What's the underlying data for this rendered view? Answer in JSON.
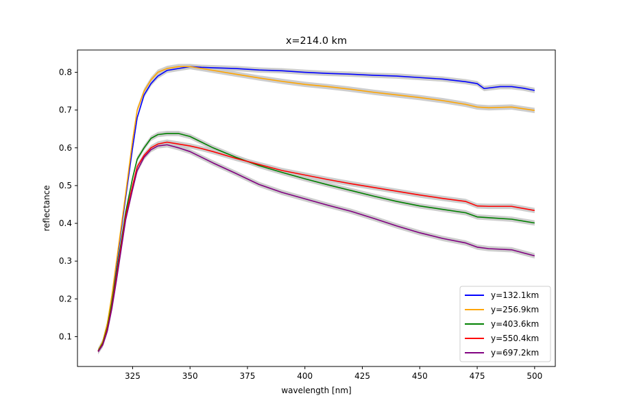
{
  "chart_data": {
    "type": "line",
    "title": "x=214.0 km",
    "xlabel": "wavelength [nm]",
    "ylabel": "reflectance",
    "xlim": [
      301,
      509
    ],
    "ylim": [
      0.021,
      0.859
    ],
    "xticks": [
      325,
      350,
      375,
      400,
      425,
      450,
      475,
      500
    ],
    "yticks": [
      0.1,
      0.2,
      0.3,
      0.4,
      0.5,
      0.6,
      0.7,
      0.8
    ],
    "grid": false,
    "legend_position": "lower-right",
    "band_color": "#c8c8c8",
    "series": [
      {
        "name": "y=132.1km",
        "color": "#0000ff",
        "points": [
          [
            310,
            0.063
          ],
          [
            312,
            0.085
          ],
          [
            314,
            0.13
          ],
          [
            316,
            0.2
          ],
          [
            318,
            0.29
          ],
          [
            320,
            0.38
          ],
          [
            322,
            0.47
          ],
          [
            325,
            0.6
          ],
          [
            327,
            0.68
          ],
          [
            330,
            0.74
          ],
          [
            333,
            0.77
          ],
          [
            336,
            0.79
          ],
          [
            340,
            0.805
          ],
          [
            345,
            0.81
          ],
          [
            350,
            0.815
          ],
          [
            355,
            0.813
          ],
          [
            360,
            0.812
          ],
          [
            370,
            0.81
          ],
          [
            380,
            0.806
          ],
          [
            390,
            0.804
          ],
          [
            400,
            0.8
          ],
          [
            410,
            0.797
          ],
          [
            420,
            0.795
          ],
          [
            430,
            0.792
          ],
          [
            440,
            0.79
          ],
          [
            450,
            0.786
          ],
          [
            460,
            0.782
          ],
          [
            470,
            0.775
          ],
          [
            475,
            0.77
          ],
          [
            478,
            0.757
          ],
          [
            485,
            0.762
          ],
          [
            490,
            0.762
          ],
          [
            495,
            0.758
          ],
          [
            500,
            0.752
          ]
        ]
      },
      {
        "name": "y=256.9km",
        "color": "#ffa500",
        "points": [
          [
            310,
            0.063
          ],
          [
            312,
            0.087
          ],
          [
            314,
            0.135
          ],
          [
            316,
            0.21
          ],
          [
            318,
            0.3
          ],
          [
            320,
            0.39
          ],
          [
            322,
            0.48
          ],
          [
            325,
            0.62
          ],
          [
            327,
            0.7
          ],
          [
            330,
            0.75
          ],
          [
            333,
            0.78
          ],
          [
            336,
            0.8
          ],
          [
            340,
            0.81
          ],
          [
            345,
            0.815
          ],
          [
            350,
            0.815
          ],
          [
            355,
            0.81
          ],
          [
            360,
            0.805
          ],
          [
            370,
            0.795
          ],
          [
            380,
            0.785
          ],
          [
            390,
            0.776
          ],
          [
            400,
            0.768
          ],
          [
            410,
            0.762
          ],
          [
            420,
            0.755
          ],
          [
            430,
            0.747
          ],
          [
            440,
            0.74
          ],
          [
            450,
            0.733
          ],
          [
            460,
            0.725
          ],
          [
            470,
            0.715
          ],
          [
            475,
            0.708
          ],
          [
            480,
            0.706
          ],
          [
            490,
            0.708
          ],
          [
            500,
            0.699
          ]
        ]
      },
      {
        "name": "y=403.6km",
        "color": "#008000",
        "points": [
          [
            310,
            0.062
          ],
          [
            312,
            0.083
          ],
          [
            314,
            0.125
          ],
          [
            316,
            0.19
          ],
          [
            318,
            0.27
          ],
          [
            320,
            0.35
          ],
          [
            322,
            0.43
          ],
          [
            325,
            0.52
          ],
          [
            327,
            0.57
          ],
          [
            330,
            0.6
          ],
          [
            333,
            0.625
          ],
          [
            336,
            0.635
          ],
          [
            340,
            0.638
          ],
          [
            345,
            0.638
          ],
          [
            350,
            0.63
          ],
          [
            355,
            0.615
          ],
          [
            360,
            0.6
          ],
          [
            370,
            0.575
          ],
          [
            380,
            0.553
          ],
          [
            390,
            0.535
          ],
          [
            400,
            0.518
          ],
          [
            410,
            0.502
          ],
          [
            420,
            0.487
          ],
          [
            430,
            0.472
          ],
          [
            440,
            0.458
          ],
          [
            450,
            0.446
          ],
          [
            460,
            0.437
          ],
          [
            470,
            0.428
          ],
          [
            475,
            0.417
          ],
          [
            480,
            0.415
          ],
          [
            490,
            0.411
          ],
          [
            500,
            0.401
          ]
        ]
      },
      {
        "name": "y=550.4km",
        "color": "#ff0000",
        "points": [
          [
            310,
            0.061
          ],
          [
            312,
            0.08
          ],
          [
            314,
            0.12
          ],
          [
            316,
            0.18
          ],
          [
            318,
            0.26
          ],
          [
            320,
            0.34
          ],
          [
            322,
            0.42
          ],
          [
            325,
            0.5
          ],
          [
            327,
            0.55
          ],
          [
            330,
            0.58
          ],
          [
            333,
            0.6
          ],
          [
            336,
            0.61
          ],
          [
            340,
            0.615
          ],
          [
            345,
            0.61
          ],
          [
            350,
            0.605
          ],
          [
            355,
            0.598
          ],
          [
            360,
            0.59
          ],
          [
            370,
            0.572
          ],
          [
            380,
            0.556
          ],
          [
            390,
            0.54
          ],
          [
            400,
            0.528
          ],
          [
            410,
            0.516
          ],
          [
            420,
            0.505
          ],
          [
            430,
            0.495
          ],
          [
            440,
            0.485
          ],
          [
            450,
            0.475
          ],
          [
            460,
            0.466
          ],
          [
            470,
            0.458
          ],
          [
            475,
            0.446
          ],
          [
            480,
            0.445
          ],
          [
            490,
            0.445
          ],
          [
            500,
            0.434
          ]
        ]
      },
      {
        "name": "y=697.2km",
        "color": "#800080",
        "points": [
          [
            310,
            0.06
          ],
          [
            312,
            0.078
          ],
          [
            314,
            0.115
          ],
          [
            316,
            0.175
          ],
          [
            318,
            0.25
          ],
          [
            320,
            0.33
          ],
          [
            322,
            0.41
          ],
          [
            325,
            0.49
          ],
          [
            327,
            0.54
          ],
          [
            330,
            0.575
          ],
          [
            333,
            0.595
          ],
          [
            336,
            0.605
          ],
          [
            340,
            0.608
          ],
          [
            345,
            0.6
          ],
          [
            350,
            0.59
          ],
          [
            355,
            0.575
          ],
          [
            360,
            0.56
          ],
          [
            370,
            0.532
          ],
          [
            380,
            0.503
          ],
          [
            390,
            0.482
          ],
          [
            400,
            0.465
          ],
          [
            410,
            0.448
          ],
          [
            420,
            0.432
          ],
          [
            430,
            0.413
          ],
          [
            440,
            0.393
          ],
          [
            450,
            0.375
          ],
          [
            460,
            0.36
          ],
          [
            470,
            0.348
          ],
          [
            475,
            0.337
          ],
          [
            480,
            0.333
          ],
          [
            490,
            0.33
          ],
          [
            500,
            0.314
          ]
        ]
      }
    ]
  }
}
